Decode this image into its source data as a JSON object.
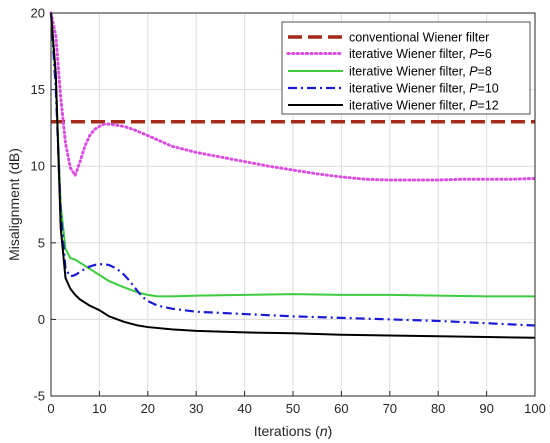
{
  "chart_data": {
    "type": "line",
    "xlabel": "Iterations",
    "xlabel_var": "n",
    "ylabel": "Misalignment (dB)",
    "xlim": [
      0,
      100
    ],
    "ylim": [
      -5,
      20
    ],
    "xticks": [
      0,
      10,
      20,
      30,
      40,
      50,
      60,
      70,
      80,
      90,
      100
    ],
    "yticks": [
      -5,
      0,
      5,
      10,
      15,
      20
    ],
    "grid": true,
    "legend_position": "top-right",
    "series": [
      {
        "name": "conventional Wiener filter",
        "color": "#a52a1a",
        "style": "dashed",
        "x": [
          0,
          100
        ],
        "y": [
          12.9,
          12.9
        ]
      },
      {
        "name": "iterative Wiener filter, ",
        "param": "P",
        "param_value": "=6",
        "color": "#d94ee0",
        "style": "dotted",
        "x": [
          0,
          1,
          2,
          3,
          4,
          5,
          6,
          7,
          8,
          9,
          10,
          11,
          12,
          13,
          14,
          15,
          17,
          20,
          25,
          30,
          35,
          40,
          45,
          50,
          55,
          60,
          65,
          70,
          75,
          80,
          85,
          90,
          95,
          100
        ],
        "y": [
          20,
          18.5,
          14.5,
          11.5,
          9.9,
          9.4,
          10.3,
          11.3,
          12.0,
          12.4,
          12.6,
          12.75,
          12.75,
          12.7,
          12.65,
          12.6,
          12.4,
          12.0,
          11.3,
          10.9,
          10.6,
          10.3,
          10.0,
          9.75,
          9.5,
          9.3,
          9.15,
          9.1,
          9.1,
          9.1,
          9.15,
          9.15,
          9.15,
          9.2
        ]
      },
      {
        "name": "iterative Wiener filter, ",
        "param": "P",
        "param_value": "=8",
        "color": "#3dcc3d",
        "style": "solid",
        "x": [
          0,
          1,
          2,
          3,
          4,
          5,
          6,
          8,
          10,
          12,
          15,
          18,
          20,
          22,
          25,
          30,
          40,
          50,
          60,
          70,
          80,
          90,
          100
        ],
        "y": [
          20,
          15.5,
          7.5,
          4.6,
          4.0,
          3.9,
          3.7,
          3.3,
          2.9,
          2.5,
          2.1,
          1.75,
          1.6,
          1.5,
          1.5,
          1.55,
          1.6,
          1.65,
          1.6,
          1.6,
          1.55,
          1.5,
          1.5
        ]
      },
      {
        "name": "iterative Wiener filter, ",
        "param": "P",
        "param_value": "=10",
        "color": "#1a1ad4",
        "style": "dashdot",
        "x": [
          0,
          1,
          2,
          3,
          4,
          5,
          6,
          7,
          8,
          9,
          10,
          11,
          12,
          13,
          14,
          15,
          16,
          17,
          18,
          19,
          20,
          22,
          25,
          30,
          40,
          50,
          60,
          70,
          80,
          90,
          100
        ],
        "y": [
          20,
          15,
          7.0,
          3.3,
          2.8,
          2.9,
          3.1,
          3.3,
          3.45,
          3.55,
          3.6,
          3.6,
          3.55,
          3.4,
          3.2,
          2.95,
          2.6,
          2.2,
          1.8,
          1.45,
          1.2,
          0.9,
          0.7,
          0.5,
          0.35,
          0.2,
          0.1,
          0.0,
          -0.1,
          -0.25,
          -0.4
        ]
      },
      {
        "name": "iterative Wiener filter, ",
        "param": "P",
        "param_value": "=12",
        "color": "#000000",
        "style": "solid",
        "x": [
          0,
          1,
          2,
          3,
          4,
          5,
          6,
          7,
          8,
          10,
          12,
          15,
          18,
          20,
          25,
          30,
          40,
          50,
          60,
          70,
          80,
          90,
          100
        ],
        "y": [
          20,
          16,
          6.0,
          2.7,
          2.0,
          1.6,
          1.3,
          1.1,
          0.9,
          0.6,
          0.2,
          -0.15,
          -0.4,
          -0.5,
          -0.65,
          -0.75,
          -0.85,
          -0.9,
          -1.0,
          -1.05,
          -1.1,
          -1.15,
          -1.2
        ]
      }
    ]
  }
}
